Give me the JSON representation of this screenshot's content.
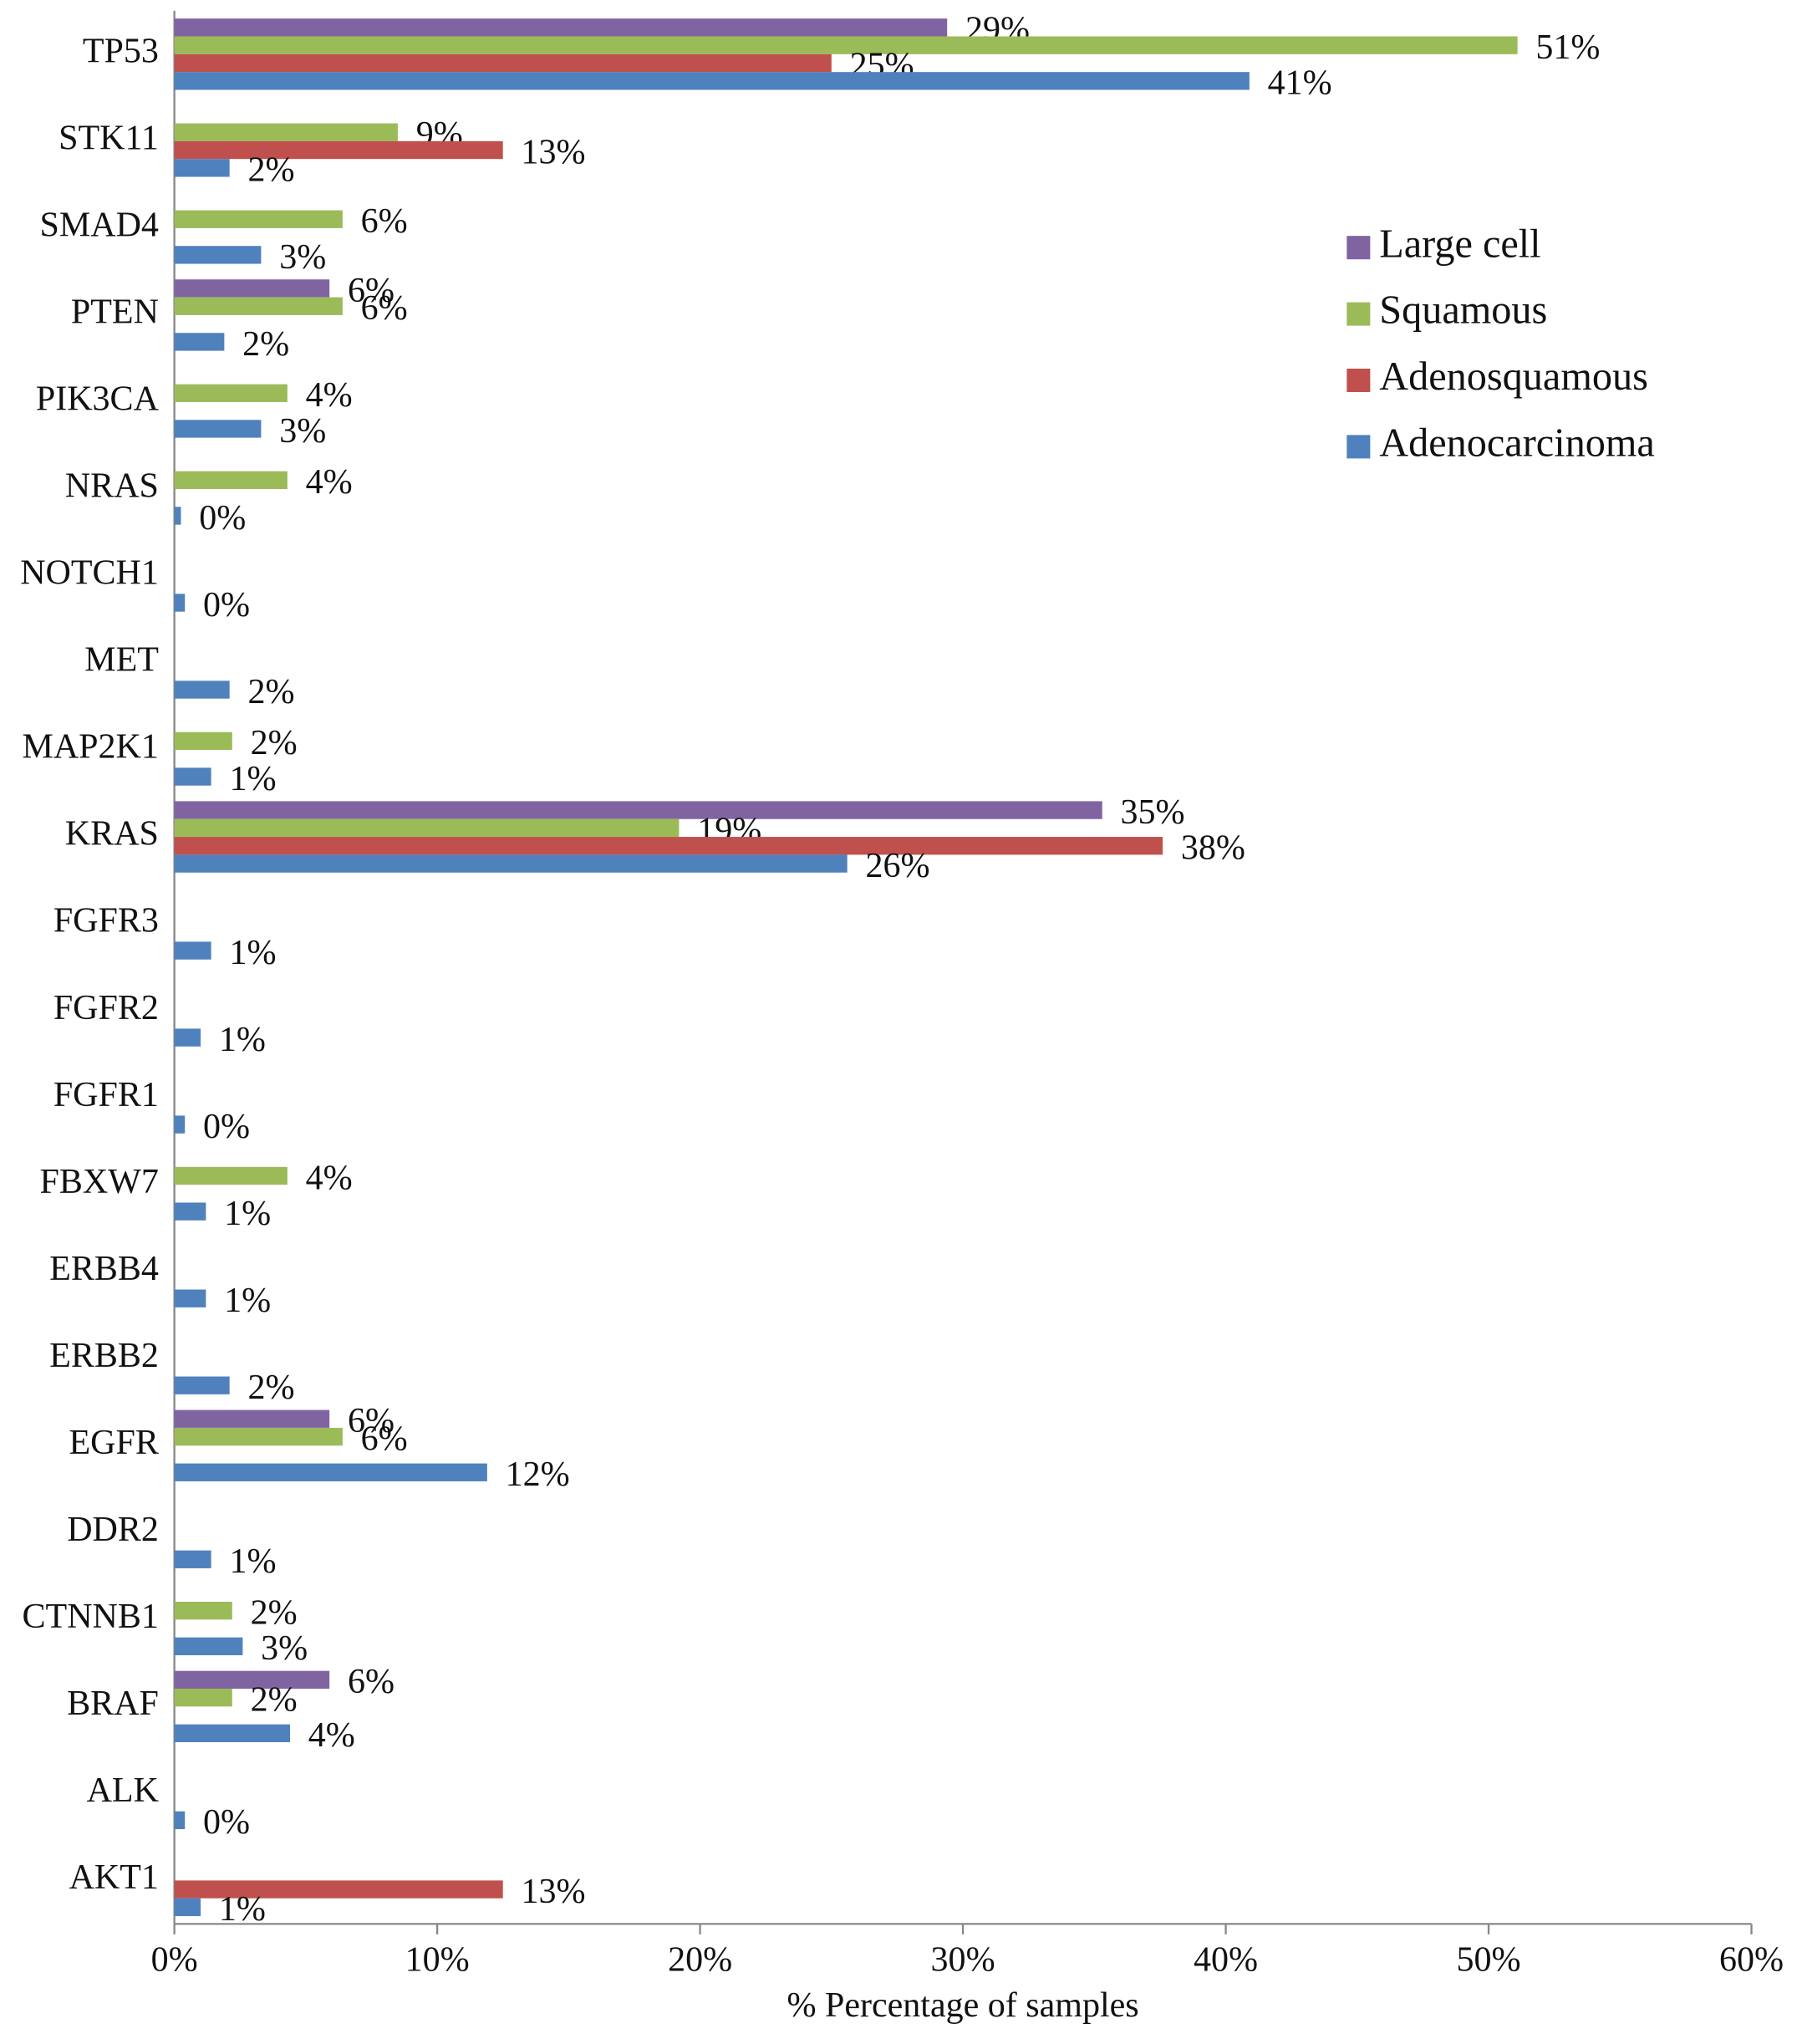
{
  "chart_data": {
    "type": "barh",
    "categories": [
      "TP53",
      "STK11",
      "SMAD4",
      "PTEN",
      "PIK3CA",
      "NRAS",
      "NOTCH1",
      "MET",
      "MAP2K1",
      "KRAS",
      "FGFR3",
      "FGFR2",
      "FGFR1",
      "FBXW7",
      "ERBB4",
      "ERBB2",
      "EGFR",
      "DDR2",
      "CTNNB1",
      "BRAF",
      "ALK",
      "AKT1"
    ],
    "series": [
      {
        "name": "Large cell",
        "color": "#8064a2",
        "values": [
          29.4,
          null,
          null,
          5.9,
          null,
          null,
          null,
          null,
          null,
          35.3,
          null,
          null,
          null,
          null,
          null,
          null,
          5.9,
          null,
          null,
          5.9,
          null,
          null
        ],
        "value_labels": [
          "29%",
          null,
          null,
          "6%",
          null,
          null,
          null,
          null,
          null,
          "35%",
          null,
          null,
          null,
          null,
          null,
          null,
          "6%",
          null,
          null,
          "6%",
          null,
          null
        ]
      },
      {
        "name": "Squamous",
        "color": "#9bbb59",
        "values": [
          51.1,
          8.5,
          6.4,
          6.4,
          4.3,
          4.3,
          null,
          null,
          2.2,
          19.2,
          null,
          null,
          null,
          4.3,
          null,
          null,
          6.4,
          null,
          2.2,
          2.2,
          null,
          null
        ],
        "value_labels": [
          "51%",
          "9%",
          "6%",
          "6%",
          "4%",
          "4%",
          null,
          null,
          "2%",
          "19%",
          null,
          null,
          null,
          "4%",
          null,
          null,
          "6%",
          null,
          "2%",
          "2%",
          null,
          null
        ]
      },
      {
        "name": "Adenosquamous",
        "color": "#c0504d",
        "values": [
          25.0,
          12.5,
          null,
          null,
          null,
          null,
          null,
          null,
          null,
          37.6,
          null,
          null,
          null,
          null,
          null,
          null,
          null,
          null,
          null,
          null,
          null,
          12.5
        ],
        "value_labels": [
          "25%",
          "13%",
          null,
          null,
          null,
          null,
          null,
          null,
          null,
          "38%",
          null,
          null,
          null,
          null,
          null,
          null,
          null,
          null,
          null,
          null,
          null,
          "13%"
        ]
      },
      {
        "name": "Adenocarcinoma",
        "color": "#4f81bd",
        "values": [
          40.9,
          2.1,
          3.3,
          1.9,
          3.3,
          0.25,
          0.4,
          2.1,
          1.4,
          25.6,
          1.4,
          1.0,
          0.4,
          1.2,
          1.2,
          2.1,
          11.9,
          1.4,
          2.6,
          4.4,
          0.4,
          1.0
        ],
        "value_labels": [
          "41%",
          "2%",
          "3%",
          "2%",
          "3%",
          "0%",
          "0%",
          "2%",
          "1%",
          "26%",
          "1%",
          "1%",
          "0%",
          "1%",
          "1%",
          "2%",
          "12%",
          "1%",
          "3%",
          "4%",
          "0%",
          "1%"
        ]
      }
    ],
    "xlim": [
      0,
      60
    ],
    "xticks": [
      {
        "value": 0,
        "label": "0%"
      },
      {
        "value": 10,
        "label": "10%"
      },
      {
        "value": 20,
        "label": "20%"
      },
      {
        "value": 30,
        "label": "30%"
      },
      {
        "value": 40,
        "label": "40%"
      },
      {
        "value": 50,
        "label": "50%"
      },
      {
        "value": 60,
        "label": "60%"
      }
    ],
    "xlabel": "% Percentage of samples",
    "legend": "right"
  }
}
